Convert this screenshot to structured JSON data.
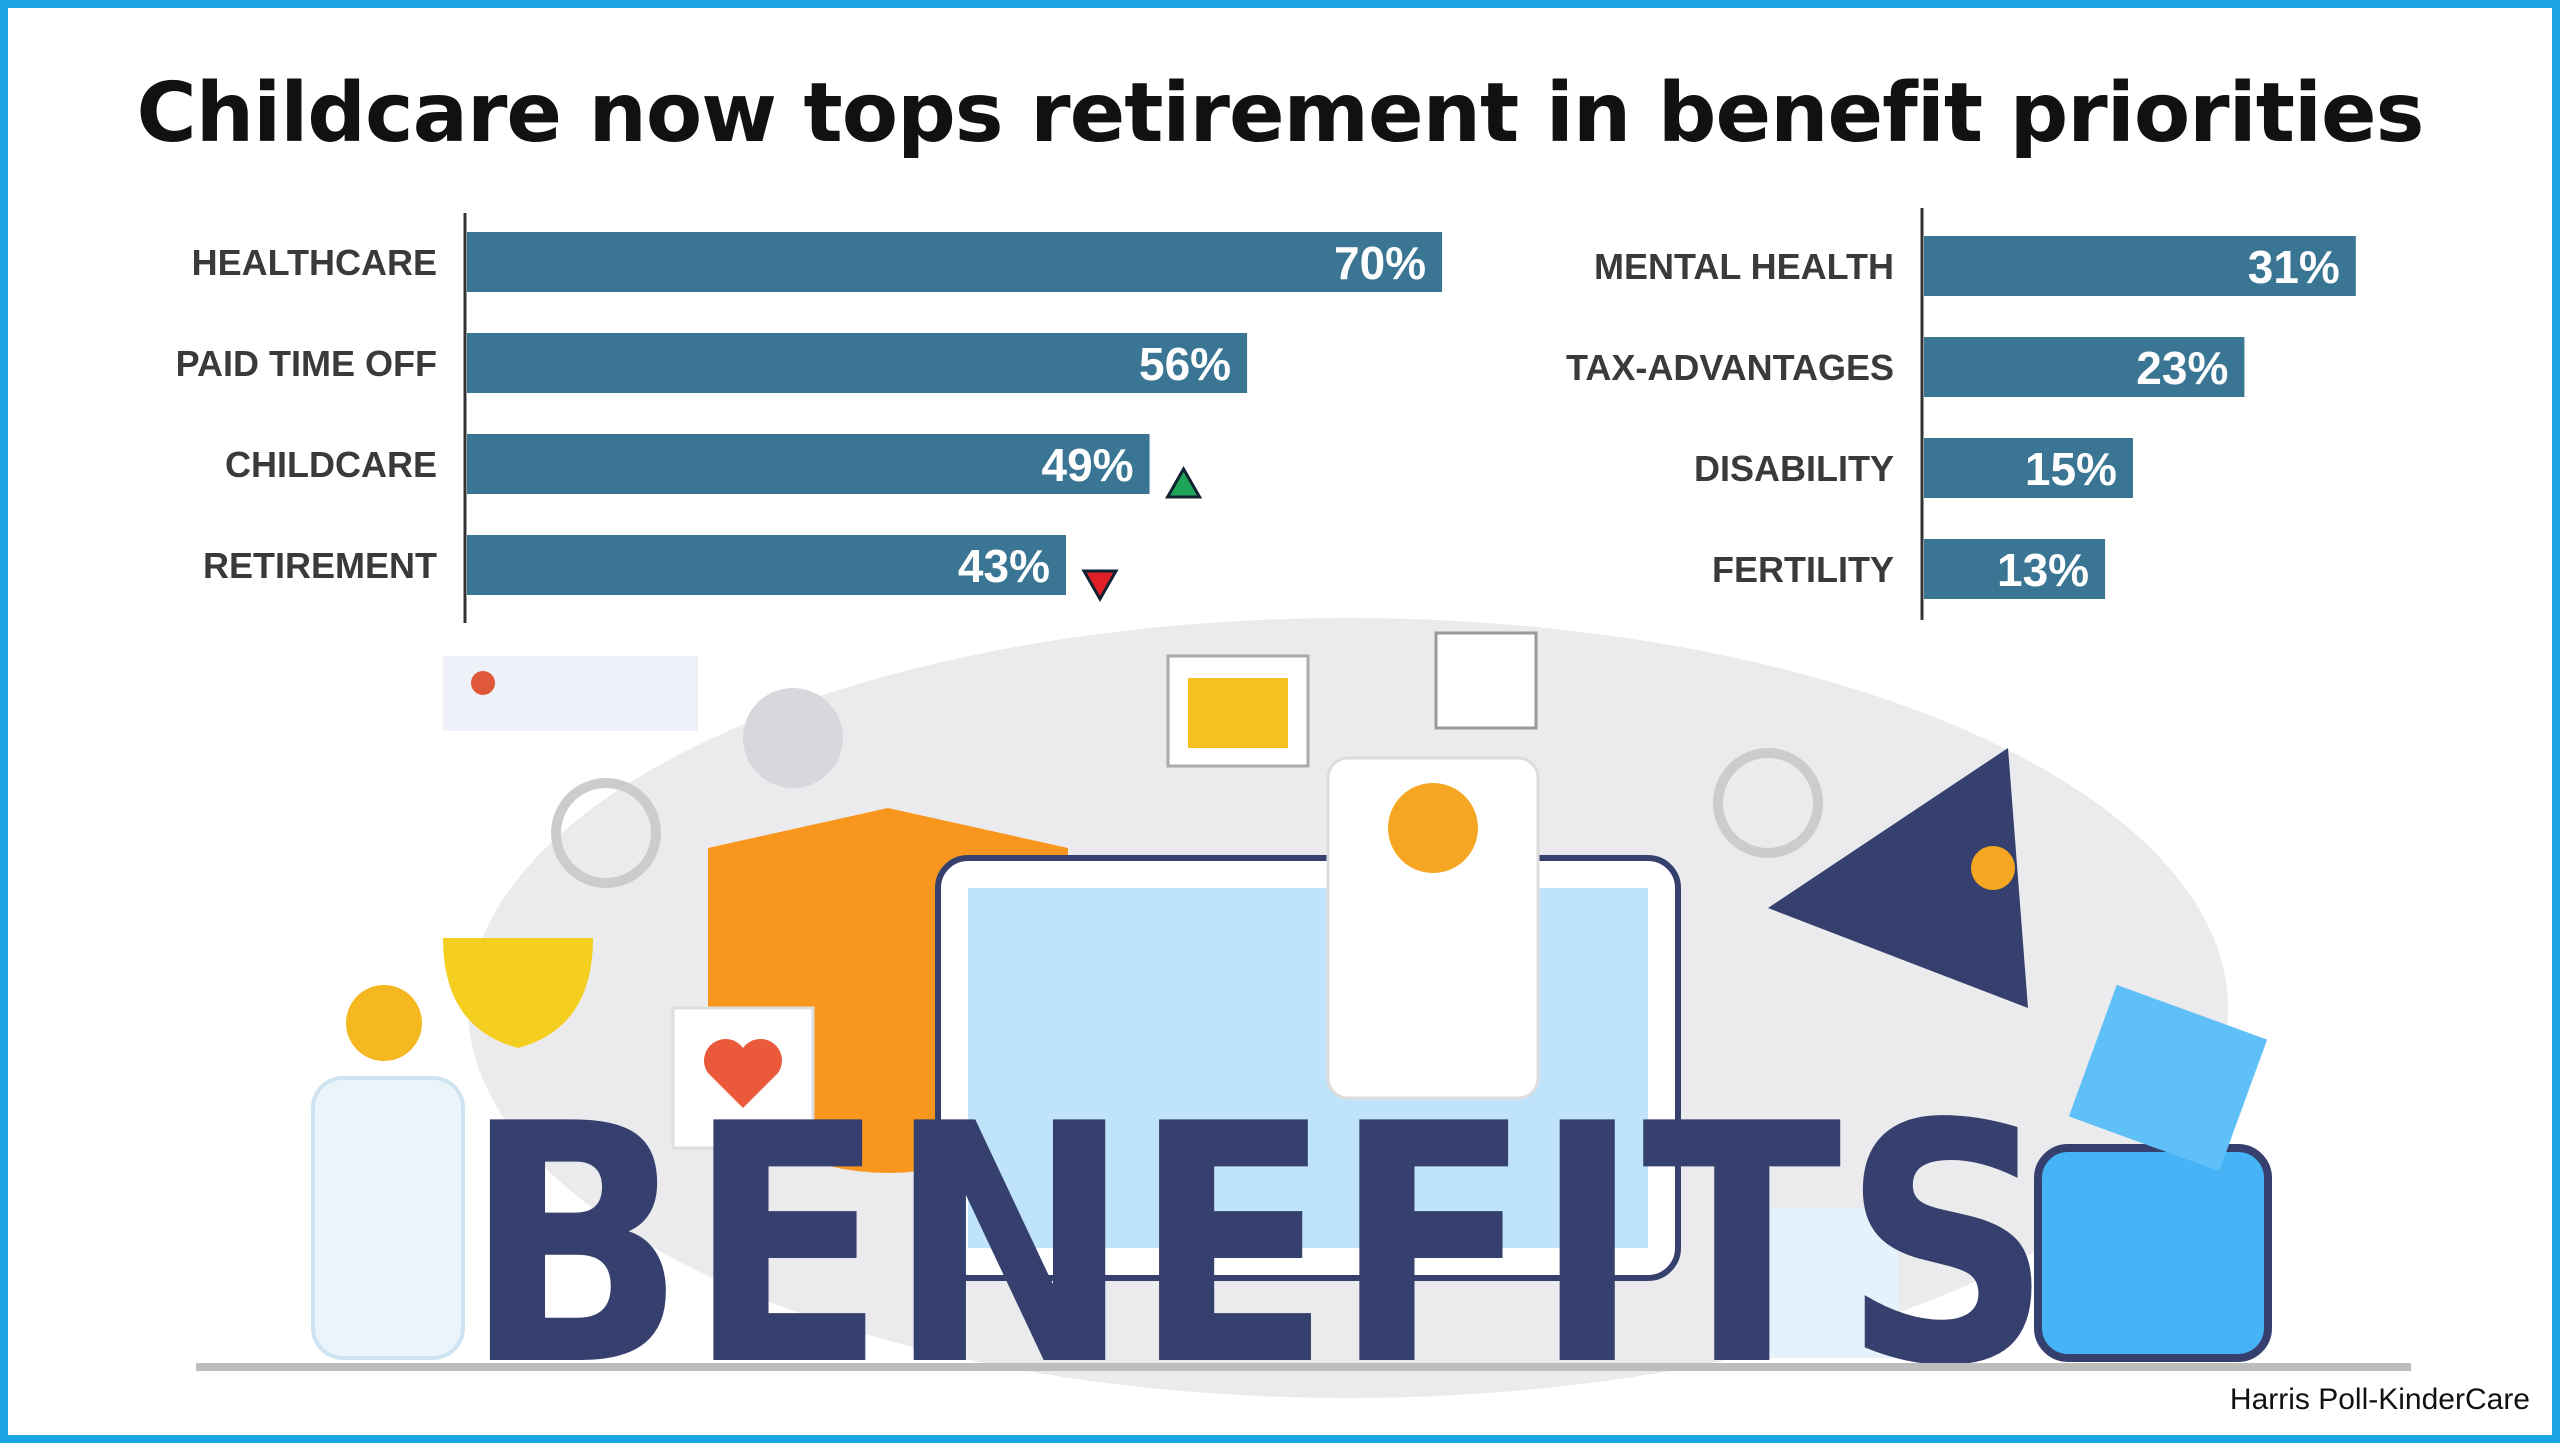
{
  "title": "Childcare now tops retirement in benefit priorities",
  "source": "Harris Poll-KinderCare",
  "illustration_word": "BENEFITS",
  "colors": {
    "bar": "#3a7693",
    "frame": "#1ba6e3",
    "up": "#1fa557",
    "down": "#e01f26",
    "word": "#36406e"
  },
  "chart_data": [
    {
      "type": "bar",
      "orientation": "horizontal",
      "categories": [
        "HEALTHCARE",
        "PAID TIME OFF",
        "CHILDCARE",
        "RETIREMENT"
      ],
      "values": [
        70,
        56,
        49,
        43
      ],
      "labels": [
        "70%",
        "56%",
        "49%",
        "43%"
      ],
      "trend": [
        null,
        null,
        "up",
        "down"
      ],
      "xlim": [
        0,
        70
      ],
      "grid": false
    },
    {
      "type": "bar",
      "orientation": "horizontal",
      "categories": [
        "MENTAL HEALTH",
        "TAX-ADVANTAGES",
        "DISABILITY",
        "FERTILITY"
      ],
      "values": [
        31,
        23,
        15,
        13
      ],
      "labels": [
        "31%",
        "23%",
        "15%",
        "13%"
      ],
      "xlim": [
        0,
        70
      ],
      "grid": false
    }
  ]
}
